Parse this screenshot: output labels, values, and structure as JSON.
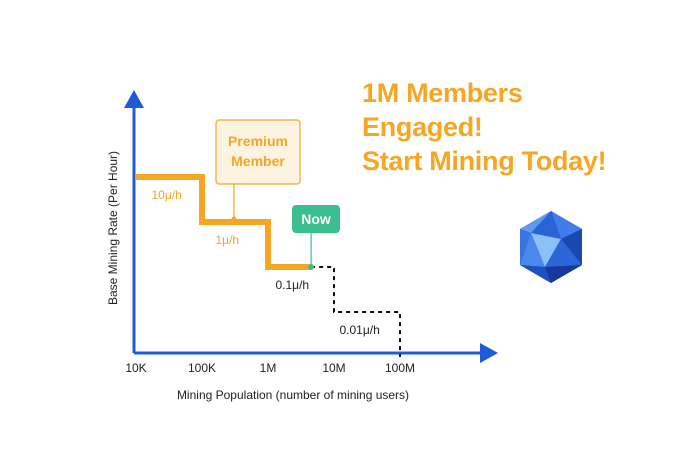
{
  "headline": {
    "line1": "1M Members",
    "line2": "Engaged!",
    "line3": "Start Mining Today!"
  },
  "colors": {
    "accent": "#f5a623",
    "axis": "#1e5bd6",
    "now": "#3cbf8f",
    "future": "#111111",
    "callout_bg": "#fdf3e1",
    "logo": "#2a63d4"
  },
  "chart_data": {
    "type": "line",
    "xscale": "log",
    "xlabel": "Mining Population (number of mining users)",
    "ylabel": "Base Mining Rate (Per Hour)",
    "xticks": [
      "10K",
      "100K",
      "1M",
      "10M",
      "100M"
    ],
    "xtick_values": [
      10000,
      100000,
      1000000,
      10000000,
      100000000
    ],
    "xlim": [
      10000,
      100000000
    ],
    "series": [
      {
        "style": "solid-orange",
        "x": [
          10000,
          100000,
          100000,
          1000000,
          1000000,
          4500000
        ],
        "y": [
          10,
          10,
          1,
          1,
          0.1,
          0.1
        ]
      },
      {
        "style": "dashed-black",
        "x": [
          4500000,
          10000000,
          10000000,
          100000000,
          100000000
        ],
        "y": [
          0.1,
          0.1,
          0.01,
          0.01,
          0.001
        ]
      }
    ],
    "rate_labels": [
      {
        "text": "10μ/h",
        "x": 30000,
        "y": 10
      },
      {
        "text": "1μ/h",
        "x": 300000,
        "y": 1
      },
      {
        "text": "0.1μ/h",
        "x": 3000000,
        "y": 0.1
      },
      {
        "text": "0.01μ/h",
        "x": 30000000,
        "y": 0.01
      }
    ],
    "annotations": [
      {
        "text": "Premium Member",
        "x": 300000,
        "y": 1
      },
      {
        "text": "Now",
        "x": 4500000,
        "y": 0.1
      }
    ]
  }
}
